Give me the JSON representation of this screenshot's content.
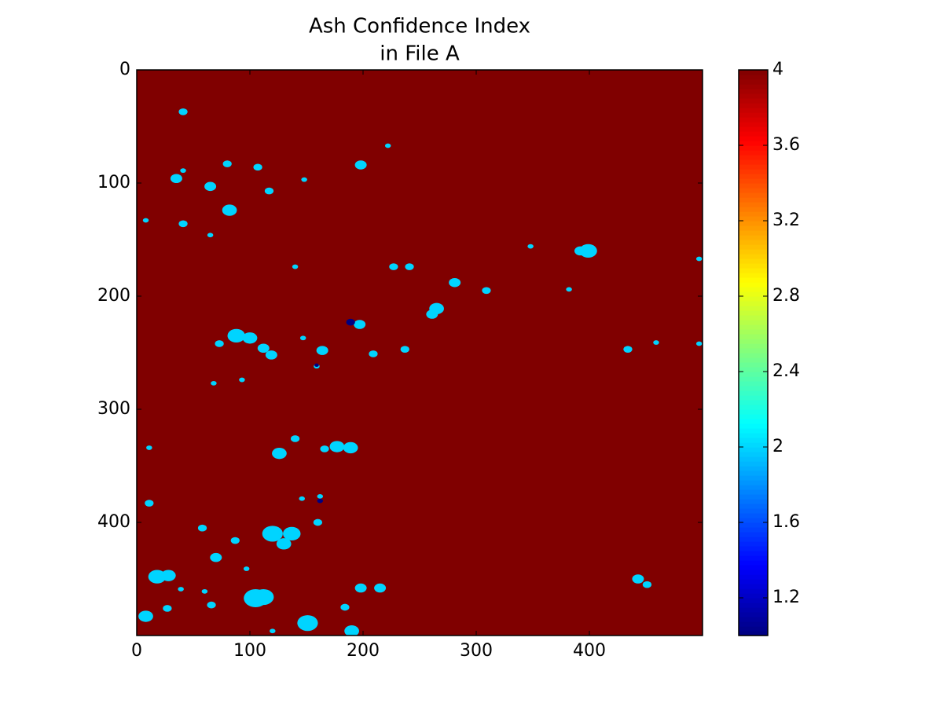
{
  "chart_data": {
    "type": "heatmap",
    "title": [
      "Ash Confidence Index",
      "in File A"
    ],
    "colormap": "jet",
    "background_value": 4,
    "patches": {
      "x": [
        41,
        198,
        222,
        35,
        65,
        82,
        80,
        107,
        117,
        148,
        8,
        41,
        65,
        140,
        227,
        241,
        281,
        309,
        265,
        261,
        348,
        399,
        392,
        382,
        497,
        434,
        459,
        497,
        88,
        100,
        112,
        119,
        73,
        164,
        197,
        189,
        209,
        237,
        147,
        159,
        159,
        68,
        93,
        126,
        140,
        177,
        189,
        166,
        11,
        11,
        146,
        162,
        162,
        58,
        87,
        120,
        137,
        130,
        160,
        70,
        97,
        18,
        28,
        60,
        39,
        105,
        112,
        66,
        27,
        8,
        151,
        184,
        198,
        215,
        190,
        120,
        443,
        451,
        41
      ],
      "y": [
        37,
        84,
        67,
        96,
        103,
        124,
        83,
        86,
        107,
        97,
        133,
        136,
        146,
        174,
        174,
        174,
        188,
        195,
        211,
        216,
        156,
        160,
        160,
        194,
        167,
        247,
        241,
        242,
        235,
        237,
        246,
        252,
        242,
        248,
        225,
        223,
        251,
        247,
        237,
        262,
        261,
        277,
        274,
        339,
        326,
        333,
        334,
        335,
        334,
        383,
        379,
        377,
        381,
        405,
        416,
        410,
        410,
        419,
        400,
        431,
        441,
        448,
        447,
        461,
        459,
        467,
        466,
        473,
        476,
        483,
        489,
        475,
        458,
        458,
        496,
        496,
        450,
        455,
        89
      ],
      "values": [
        2,
        2,
        2,
        2,
        2,
        2,
        2,
        2,
        2,
        2,
        2,
        2,
        2,
        2,
        2,
        2,
        2,
        2,
        2,
        2,
        2,
        2,
        2,
        2,
        2,
        2,
        2,
        2,
        2,
        2,
        2,
        2,
        2,
        2,
        2,
        1,
        2,
        2,
        2,
        2,
        1,
        2,
        2,
        2,
        2,
        2,
        2,
        2,
        2,
        2,
        2,
        2,
        1,
        2,
        2,
        2,
        2,
        2,
        2,
        2,
        2,
        2,
        2,
        2,
        2,
        2,
        2,
        2,
        2,
        2,
        2,
        2,
        2,
        2,
        2,
        2,
        2,
        2,
        2
      ],
      "sizes": [
        3,
        4,
        2,
        4,
        4,
        5,
        3,
        3,
        3,
        2,
        2,
        3,
        2,
        2,
        3,
        3,
        4,
        3,
        5,
        4,
        2,
        6,
        4,
        2,
        2,
        3,
        2,
        2,
        6,
        5,
        4,
        4,
        3,
        4,
        4,
        3,
        3,
        3,
        2,
        2,
        1.5,
        2,
        2,
        5,
        3,
        5,
        5,
        3,
        2,
        3,
        2,
        2,
        2,
        3,
        3,
        7,
        6,
        5,
        3,
        4,
        2,
        6,
        5,
        2,
        2,
        8,
        7,
        3,
        3,
        5,
        7,
        3,
        4,
        4,
        5,
        2,
        4,
        3,
        2
      ]
    },
    "xlim": [
      0,
      500
    ],
    "xticks": [
      0,
      100,
      200,
      300,
      400
    ],
    "ylim": [
      500,
      0
    ],
    "yticks": [
      0,
      100,
      200,
      300,
      400
    ],
    "clim": [
      1,
      4
    ],
    "cticks": [
      1.2,
      1.6,
      2,
      2.4,
      2.8,
      3.2,
      3.6,
      4
    ]
  }
}
